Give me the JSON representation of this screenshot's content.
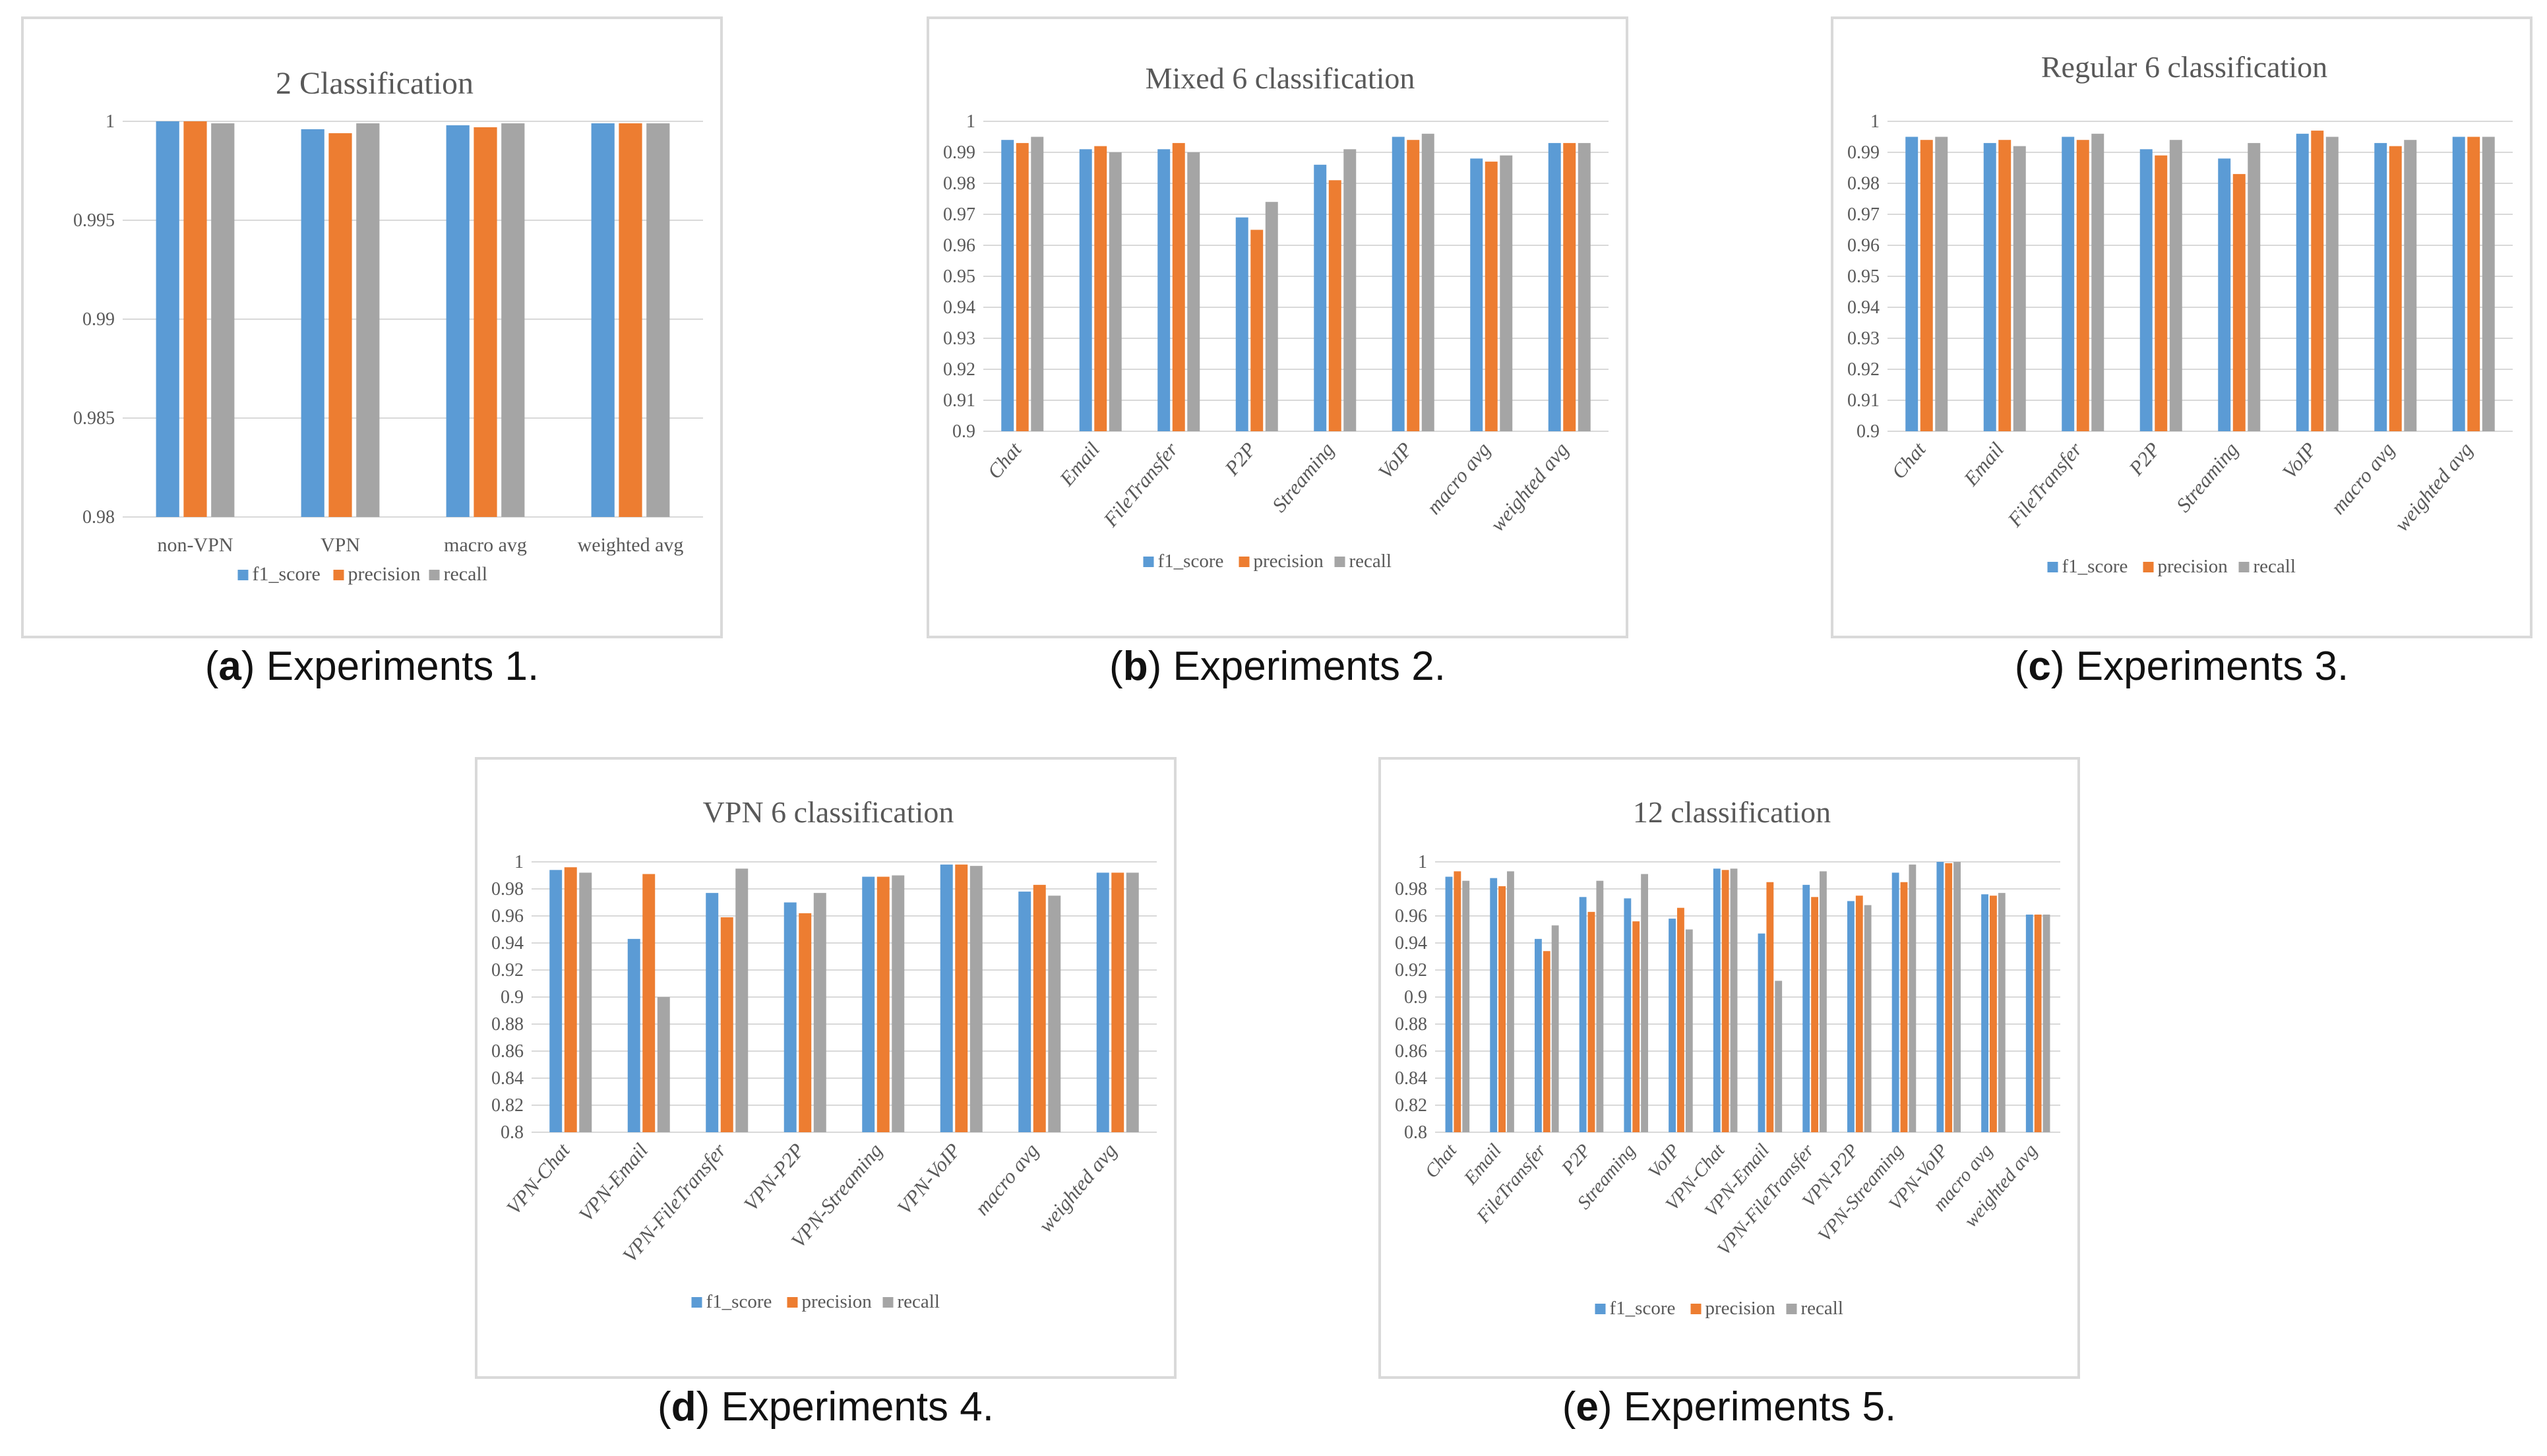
{
  "chart_data": [
    {
      "type": "bar",
      "title": "2 Classification",
      "categories": [
        "non-VPN",
        "VPN",
        "macro avg",
        "weighted avg"
      ],
      "series": [
        {
          "name": "f1_score",
          "values": [
            1.0,
            0.9996,
            0.9998,
            0.9999
          ]
        },
        {
          "name": "precision",
          "values": [
            1.0,
            0.9994,
            0.9997,
            0.9999
          ]
        },
        {
          "name": "recall",
          "values": [
            0.9999,
            0.9999,
            0.9999,
            0.9999
          ]
        }
      ],
      "ylim": [
        0.98,
        1
      ],
      "yticks": [
        "0.98",
        "0.985",
        "0.99",
        "0.995",
        "1"
      ],
      "grid": true,
      "legend": "bottom",
      "rotated_labels": false
    },
    {
      "type": "bar",
      "title": "Mixed 6 classification",
      "categories": [
        "Chat",
        "Email",
        "FileTransfer",
        "P2P",
        "Streaming",
        "VoIP",
        "macro avg",
        "weighted avg"
      ],
      "series": [
        {
          "name": "f1_score",
          "values": [
            0.994,
            0.991,
            0.991,
            0.969,
            0.986,
            0.995,
            0.988,
            0.993
          ]
        },
        {
          "name": "precision",
          "values": [
            0.993,
            0.992,
            0.993,
            0.965,
            0.981,
            0.994,
            0.987,
            0.993
          ]
        },
        {
          "name": "recall",
          "values": [
            0.995,
            0.99,
            0.99,
            0.974,
            0.991,
            0.996,
            0.989,
            0.993
          ]
        }
      ],
      "ylim": [
        0.9,
        1
      ],
      "yticks": [
        "0.9",
        "0.91",
        "0.92",
        "0.93",
        "0.94",
        "0.95",
        "0.96",
        "0.97",
        "0.98",
        "0.99",
        "1"
      ],
      "grid": true,
      "legend": "bottom",
      "rotated_labels": true
    },
    {
      "type": "bar",
      "title": "Regular  6 classification",
      "categories": [
        "Chat",
        "Email",
        "FileTransfer",
        "P2P",
        "Streaming",
        "VoIP",
        "macro avg",
        "weighted avg"
      ],
      "series": [
        {
          "name": "f1_score",
          "values": [
            0.995,
            0.993,
            0.995,
            0.991,
            0.988,
            0.996,
            0.993,
            0.995
          ]
        },
        {
          "name": "precision",
          "values": [
            0.994,
            0.994,
            0.994,
            0.989,
            0.983,
            0.997,
            0.992,
            0.995
          ]
        },
        {
          "name": "recall",
          "values": [
            0.995,
            0.992,
            0.996,
            0.994,
            0.993,
            0.995,
            0.994,
            0.995
          ]
        }
      ],
      "ylim": [
        0.9,
        1
      ],
      "yticks": [
        "0.9",
        "0.91",
        "0.92",
        "0.93",
        "0.94",
        "0.95",
        "0.96",
        "0.97",
        "0.98",
        "0.99",
        "1"
      ],
      "grid": true,
      "legend": "bottom",
      "rotated_labels": true
    },
    {
      "type": "bar",
      "title": "VPN 6 classification",
      "categories": [
        "VPN-Chat",
        "VPN-Email",
        "VPN-FileTransfer",
        "VPN-P2P",
        "VPN-Streaming",
        "VPN-VoIP",
        "macro avg",
        "weighted avg"
      ],
      "series": [
        {
          "name": "f1_score",
          "values": [
            0.994,
            0.943,
            0.977,
            0.97,
            0.989,
            0.998,
            0.978,
            0.992
          ]
        },
        {
          "name": "precision",
          "values": [
            0.996,
            0.991,
            0.959,
            0.962,
            0.989,
            0.998,
            0.983,
            0.992
          ]
        },
        {
          "name": "recall",
          "values": [
            0.992,
            0.9,
            0.995,
            0.977,
            0.99,
            0.997,
            0.975,
            0.992
          ]
        }
      ],
      "ylim": [
        0.8,
        1
      ],
      "yticks": [
        "0.8",
        "0.82",
        "0.84",
        "0.86",
        "0.88",
        "0.9",
        "0.92",
        "0.94",
        "0.96",
        "0.98",
        "1"
      ],
      "grid": true,
      "legend": "bottom",
      "rotated_labels": true
    },
    {
      "type": "bar",
      "title": "12 classification",
      "categories": [
        "Chat",
        "Email",
        "FileTransfer",
        "P2P",
        "Streaming",
        "VoIP",
        "VPN-Chat",
        "VPN-Email",
        "VPN-FileTransfer",
        "VPN-P2P",
        "VPN-Streaming",
        "VPN-VoIP",
        "macro avg",
        "weighted avg"
      ],
      "series": [
        {
          "name": "f1_score",
          "values": [
            0.989,
            0.988,
            0.943,
            0.974,
            0.973,
            0.958,
            0.995,
            0.947,
            0.983,
            0.971,
            0.992,
            1.0,
            0.976,
            0.961
          ]
        },
        {
          "name": "precision",
          "values": [
            0.993,
            0.982,
            0.934,
            0.963,
            0.956,
            0.966,
            0.994,
            0.985,
            0.974,
            0.975,
            0.985,
            0.999,
            0.975,
            0.961
          ]
        },
        {
          "name": "recall",
          "values": [
            0.986,
            0.993,
            0.953,
            0.986,
            0.991,
            0.95,
            0.995,
            0.912,
            0.993,
            0.968,
            0.998,
            1.0,
            0.977,
            0.961
          ]
        }
      ],
      "ylim": [
        0.8,
        1
      ],
      "yticks": [
        "0.8",
        "0.82",
        "0.84",
        "0.86",
        "0.88",
        "0.9",
        "0.92",
        "0.94",
        "0.96",
        "0.98",
        "1"
      ],
      "grid": true,
      "legend": "bottom",
      "rotated_labels": true
    }
  ],
  "colors": {
    "f1_score": "#5b9bd5",
    "precision": "#ed7d31",
    "recall": "#a5a5a5",
    "grid": "#d9d9d9",
    "text": "#595959"
  },
  "captions": [
    {
      "letter": "a",
      "text": "Experiments 1."
    },
    {
      "letter": "b",
      "text": "Experiments 2."
    },
    {
      "letter": "c",
      "text": "Experiments 3."
    },
    {
      "letter": "d",
      "text": "Experiments 4."
    },
    {
      "letter": "e",
      "text": "Experiments 5."
    }
  ]
}
